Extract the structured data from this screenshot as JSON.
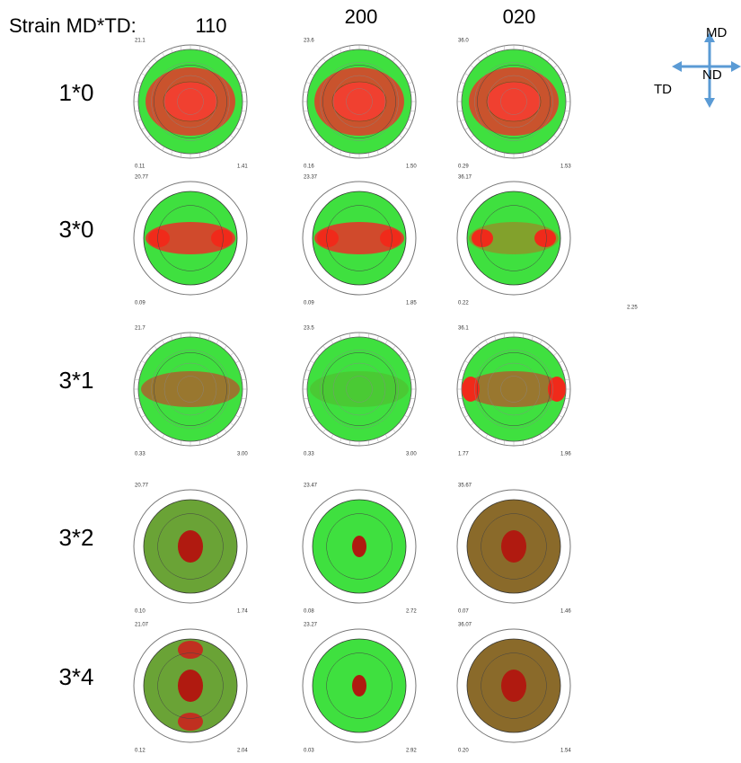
{
  "header": {
    "label": "Strain MD*TD:",
    "columns": [
      "110",
      "200",
      "020"
    ]
  },
  "compass": {
    "up": "MD",
    "center": "ND",
    "left": "TD"
  },
  "rows": [
    {
      "label": "1*0",
      "cells": [
        {
          "top": "21.1",
          "min": "0.11",
          "max": "1.41"
        },
        {
          "top": "23.6",
          "min": "0.16",
          "max": "1.50"
        },
        {
          "top": "36.0",
          "min": "0.29",
          "max": "1.53"
        }
      ]
    },
    {
      "label": "3*0",
      "cells": [
        {
          "top": "20.77",
          "min": "0.09",
          "max": ""
        },
        {
          "top": "23.37",
          "min": "0.09",
          "max": "1.85"
        },
        {
          "top": "36.17",
          "min": "0.22",
          "max": ""
        }
      ],
      "extra": "2.25"
    },
    {
      "label": "3*1",
      "cells": [
        {
          "top": "21.7",
          "min": "0.33",
          "max": "3.00"
        },
        {
          "top": "23.5",
          "min": "0.33",
          "max": "3.00"
        },
        {
          "top": "36.1",
          "min": "1.77",
          "max": "1.96"
        }
      ]
    },
    {
      "label": "3*2",
      "cells": [
        {
          "top": "20.77",
          "min": "0.10",
          "max": "1.74"
        },
        {
          "top": "23.47",
          "min": "0.08",
          "max": "2.72"
        },
        {
          "top": "35.67",
          "min": "0.07",
          "max": "1.46"
        }
      ]
    },
    {
      "label": "3*4",
      "cells": [
        {
          "top": "21.07",
          "min": "0.12",
          "max": "2.04"
        },
        {
          "top": "23.27",
          "min": "0.03",
          "max": "2.92"
        },
        {
          "top": "36.07",
          "min": "0.20",
          "max": "1.54"
        }
      ]
    }
  ]
}
